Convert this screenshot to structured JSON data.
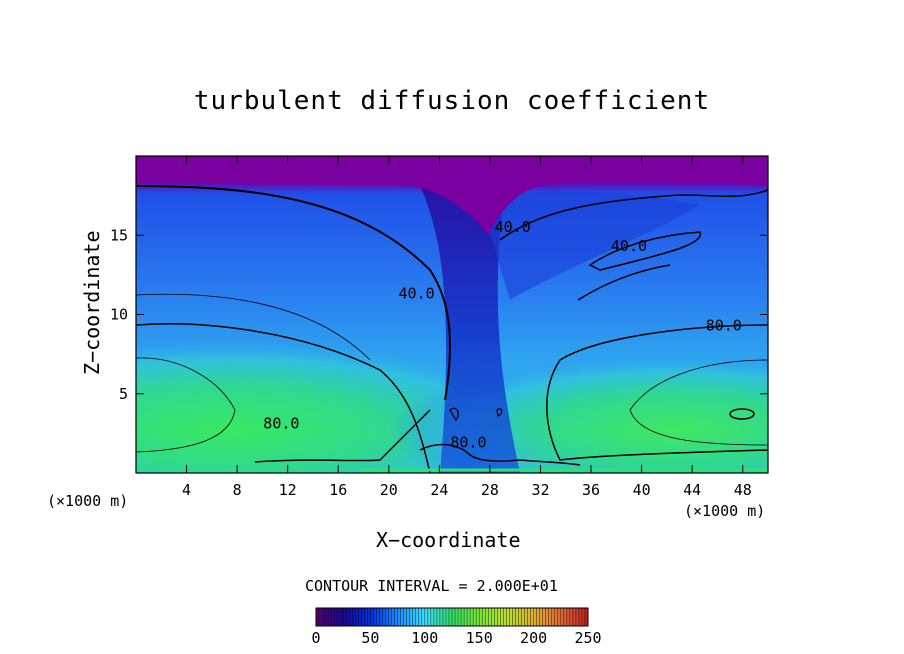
{
  "chart_data": {
    "type": "heatmap",
    "title": "turbulent diffusion coefficient",
    "xlabel": "X−coordinate",
    "ylabel": "Z−coordinate",
    "x_unit_left": "(×1000 m)",
    "x_unit_right": "(×1000 m)",
    "xlim": [
      0,
      50
    ],
    "ylim": [
      0,
      20
    ],
    "x_ticks": [
      4,
      8,
      12,
      16,
      20,
      24,
      28,
      32,
      36,
      40,
      44,
      48
    ],
    "y_ticks": [
      5,
      10,
      15
    ],
    "contour_labels": [
      {
        "text": "40.0",
        "x": 29.8,
        "y": 15.2
      },
      {
        "text": "40.0",
        "x": 39.0,
        "y": 14.0
      },
      {
        "text": "40.0",
        "x": 22.2,
        "y": 11.0
      },
      {
        "text": "80.0",
        "x": 46.5,
        "y": 9.0
      },
      {
        "text": "80.0",
        "x": 11.5,
        "y": 2.8
      },
      {
        "text": "80.0",
        "x": 26.3,
        "y": 1.6
      }
    ],
    "contour_interval_text": "CONTOUR INTERVAL = 2.000E+01",
    "colorbar": {
      "min": 0,
      "max": 250,
      "tick_labels": [
        "0",
        "50",
        "100",
        "150",
        "200",
        "250"
      ],
      "colors": [
        "#5a007a",
        "#1a0a90",
        "#0030e0",
        "#1a8cff",
        "#40e0ff",
        "#30e06a",
        "#7ae83a",
        "#b8e02a",
        "#e0b030",
        "#e06a3a",
        "#c02020"
      ]
    },
    "regions": {
      "top_layer_color": "#7a00a0",
      "upper_color": "#1060f0",
      "mid_color": "#3aa0f8",
      "low_left_color": "#30e070",
      "low_right_color": "#30e070"
    }
  }
}
